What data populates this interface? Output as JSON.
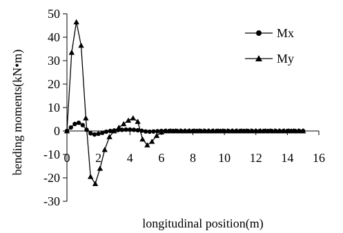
{
  "chart_data": {
    "type": "line",
    "title": "",
    "xlabel": "longitudinal position(m)",
    "ylabel": "bending moments(kN•m)",
    "xlim": [
      0,
      16
    ],
    "ylim": [
      -30,
      50
    ],
    "x_ticks": [
      0,
      2,
      4,
      6,
      8,
      10,
      12,
      14,
      16
    ],
    "y_ticks": [
      -30,
      -20,
      -10,
      0,
      10,
      20,
      30,
      40,
      50
    ],
    "legend_position": "top-right",
    "series": [
      {
        "name": "Mx",
        "marker": "circle",
        "x": [
          0,
          0.25,
          0.5,
          0.75,
          1.0,
          1.25,
          1.5,
          1.75,
          2.0,
          2.25,
          2.5,
          2.75,
          3.0,
          3.25,
          3.5,
          3.75,
          4.0,
          4.25,
          4.5,
          4.75,
          5.0,
          5.25,
          5.5,
          5.75,
          6.0,
          6.25,
          6.5,
          6.75,
          7.0,
          7.25,
          7.5,
          7.75,
          8.0,
          8.25,
          8.5,
          8.75,
          9.0,
          9.25,
          9.5,
          9.75,
          10.0,
          10.25,
          10.5,
          10.75,
          11.0,
          11.25,
          11.5,
          11.75,
          12.0,
          12.25,
          12.5,
          12.75,
          13.0,
          13.25,
          13.5,
          13.75,
          14.0,
          14.25,
          14.5,
          14.75,
          15.0
        ],
        "y": [
          0,
          1.5,
          3.0,
          3.5,
          2.5,
          0.5,
          -1.0,
          -1.5,
          -1.2,
          -0.8,
          -0.3,
          0,
          0.2,
          0.4,
          0.5,
          0.6,
          0.6,
          0.5,
          0.3,
          0.1,
          -0.2,
          -0.3,
          -0.2,
          -0.1,
          0,
          0,
          0,
          0,
          0,
          0,
          0,
          0,
          0,
          0,
          0,
          0,
          0,
          0,
          0,
          0,
          0,
          0,
          0,
          0,
          0,
          0,
          0,
          0,
          0,
          0,
          0,
          0,
          0,
          0,
          0,
          0,
          0,
          0,
          0,
          0,
          0
        ]
      },
      {
        "name": "My",
        "marker": "triangle",
        "x": [
          0,
          0.3,
          0.6,
          0.9,
          1.2,
          1.5,
          1.8,
          2.1,
          2.4,
          2.7,
          3.0,
          3.3,
          3.6,
          3.9,
          4.2,
          4.5,
          4.8,
          5.1,
          5.4,
          5.7,
          6.0,
          6.3,
          6.6,
          6.9,
          7.2,
          7.5,
          7.8,
          8.1,
          8.4,
          8.7,
          9.0,
          9.3,
          9.6,
          9.9,
          10.2,
          10.5,
          10.8,
          11.1,
          11.4,
          11.7,
          12.0,
          12.3,
          12.6,
          12.9,
          13.2,
          13.5,
          13.8,
          14.1,
          14.4,
          14.7,
          15.0
        ],
        "y": [
          0,
          33.5,
          46.5,
          36.5,
          5.5,
          -19.5,
          -22.5,
          -16.0,
          -8.0,
          -2.5,
          0,
          1.5,
          3.0,
          4.5,
          5.5,
          4.0,
          -3.5,
          -6.0,
          -4.5,
          -2.0,
          -0.5,
          0,
          0,
          0,
          0,
          0,
          0,
          0,
          0,
          0,
          0,
          0,
          0,
          0,
          0,
          0,
          0,
          0,
          0,
          0,
          0,
          0,
          0,
          0,
          0,
          0,
          0,
          0,
          0,
          0,
          0
        ]
      }
    ]
  }
}
